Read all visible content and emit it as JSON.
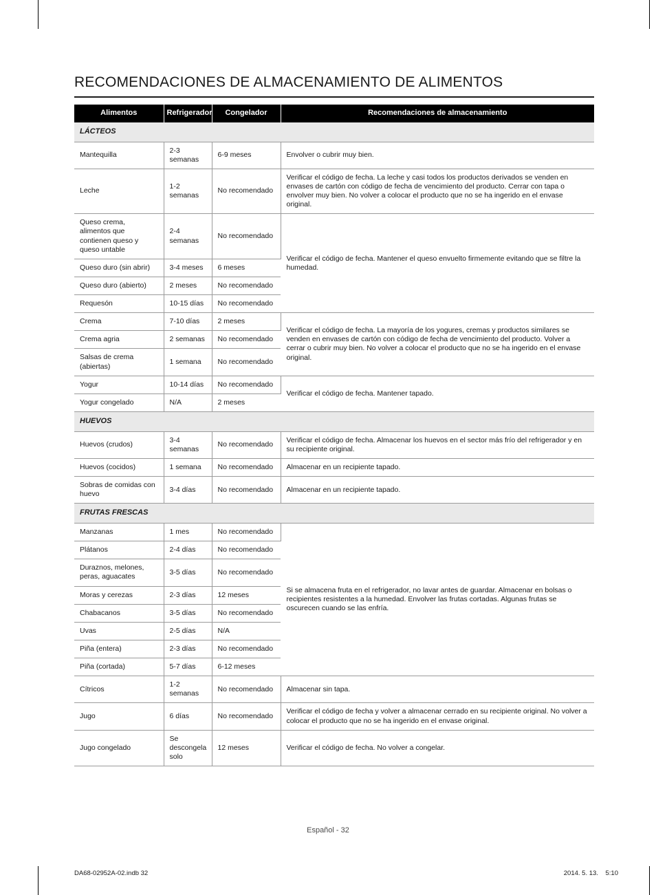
{
  "title": "RECOMENDACIONES DE ALMACENAMIENTO DE ALIMENTOS",
  "headers": {
    "food": "Alimentos",
    "fridge": "Refrigerador",
    "freezer": "Congelador",
    "rec": "Recomendaciones de almacenamiento"
  },
  "sections": {
    "dairy": "LÁCTEOS",
    "eggs": "HUEVOS",
    "fruit": "FRUTAS FRESCAS"
  },
  "rows": {
    "mantequilla": {
      "food": "Mantequilla",
      "fridge": "2-3 semanas",
      "freezer": "6-9 meses",
      "rec": "Envolver o cubrir muy bien."
    },
    "leche": {
      "food": "Leche",
      "fridge": "1-2 semanas",
      "freezer": "No recomendado",
      "rec": "Verificar el código de fecha. La leche y casi todos los productos derivados se venden en envases de cartón con código de fecha de vencimiento del producto. Cerrar con tapa o envolver muy bien. No volver a colocar el producto que no se ha ingerido en el envase original."
    },
    "queso_crema": {
      "food": "Queso crema, alimentos que contienen queso y queso untable",
      "fridge": "2-4 semanas",
      "freezer": "No recomendado"
    },
    "queso_duro_sin": {
      "food": "Queso duro (sin abrir)",
      "fridge": "3-4 meses",
      "freezer": "6 meses"
    },
    "queso_duro_ab": {
      "food": "Queso duro (abierto)",
      "fridge": "2 meses",
      "freezer": "No recomendado"
    },
    "requeson": {
      "food": "Requesón",
      "fridge": "10-15 días",
      "freezer": "No recomendado"
    },
    "queso_rec": "Verificar el código de fecha. Mantener el queso envuelto firmemente evitando que se filtre la humedad.",
    "crema": {
      "food": "Crema",
      "fridge": "7-10 días",
      "freezer": "2 meses"
    },
    "crema_agria": {
      "food": "Crema agria",
      "fridge": "2 semanas",
      "freezer": "No recomendado"
    },
    "salsas": {
      "food": "Salsas de crema (abiertas)",
      "fridge": "1 semana",
      "freezer": "No recomendado"
    },
    "crema_rec": "Verificar el código de fecha. La mayoría de los yogures, cremas y productos similares se venden en envases de cartón con código de fecha de vencimiento del producto. Volver a cerrar o cubrir muy bien. No volver a colocar el producto que no se ha ingerido en el envase original.",
    "yogur": {
      "food": "Yogur",
      "fridge": "10-14 días",
      "freezer": "No recomendado"
    },
    "yogur_cong": {
      "food": "Yogur congelado",
      "fridge": "N/A",
      "freezer": "2 meses"
    },
    "yogur_rec": "Verificar el código de fecha. Mantener tapado.",
    "huevos_crudos": {
      "food": "Huevos (crudos)",
      "fridge": "3-4 semanas",
      "freezer": "No recomendado",
      "rec": "Verificar el código de fecha. Almacenar los huevos en el sector más frío del refrigerador y en su recipiente original."
    },
    "huevos_cocidos": {
      "food": "Huevos (cocidos)",
      "fridge": "1 semana",
      "freezer": "No recomendado",
      "rec": "Almacenar en un recipiente tapado."
    },
    "sobras_huevo": {
      "food": "Sobras de comidas con huevo",
      "fridge": "3-4 días",
      "freezer": "No recomendado",
      "rec": "Almacenar en un recipiente tapado."
    },
    "manzanas": {
      "food": "Manzanas",
      "fridge": "1 mes",
      "freezer": "No recomendado"
    },
    "platanos": {
      "food": "Plátanos",
      "fridge": "2-4 días",
      "freezer": "No recomendado"
    },
    "duraznos": {
      "food": "Duraznos, melones, peras, aguacates",
      "fridge": "3-5 días",
      "freezer": "No recomendado"
    },
    "moras": {
      "food": "Moras y cerezas",
      "fridge": "2-3 días",
      "freezer": "12 meses"
    },
    "chabacanos": {
      "food": "Chabacanos",
      "fridge": "3-5 días",
      "freezer": "No recomendado"
    },
    "uvas": {
      "food": "Uvas",
      "fridge": "2-5 días",
      "freezer": "N/A"
    },
    "pina_entera": {
      "food": "Piña (entera)",
      "fridge": "2-3 días",
      "freezer": "No recomendado"
    },
    "pina_cortada": {
      "food": "Piña (cortada)",
      "fridge": "5-7 días",
      "freezer": "6-12 meses"
    },
    "fruta_rec": "Si se almacena fruta en el refrigerador, no lavar antes de guardar. Almacenar en bolsas o recipientes resistentes a la humedad. Envolver las frutas cortadas. Algunas frutas se oscurecen cuando se las enfría.",
    "citricos": {
      "food": "Cítricos",
      "fridge": "1-2 semanas",
      "freezer": "No recomendado",
      "rec": "Almacenar sin tapa."
    },
    "jugo": {
      "food": "Jugo",
      "fridge": "6 días",
      "freezer": "No recomendado",
      "rec": "Verificar el código de fecha y volver a almacenar cerrado en su recipiente original. No volver a colocar el producto que no se ha ingerido en el envase original."
    },
    "jugo_cong": {
      "food": "Jugo congelado",
      "fridge": "Se descongela solo",
      "freezer": "12 meses",
      "rec": "Verificar el código de fecha. No volver a congelar."
    }
  },
  "footer": {
    "page": "Español - 32",
    "file": "DA68-02952A-02.indb   32",
    "date": "2014. 5. 13.    5:10"
  }
}
